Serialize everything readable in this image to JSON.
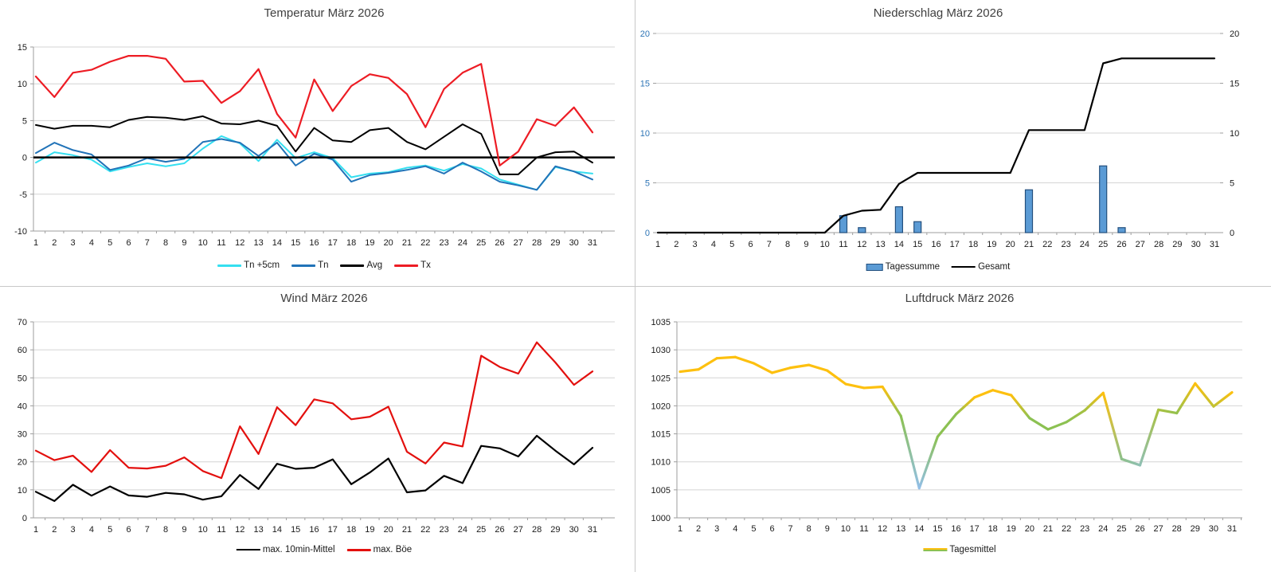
{
  "page": {
    "divider_color": "#c8c8c8",
    "background": "#ffffff"
  },
  "styles": {
    "grid_color": "#d4d4d4",
    "axis_color": "#9e9e9e",
    "tick_label_color": "#1a1a1a",
    "title_color": "#3f3f3f"
  },
  "days": [
    "1",
    "2",
    "3",
    "4",
    "5",
    "6",
    "7",
    "8",
    "9",
    "10",
    "11",
    "12",
    "13",
    "14",
    "15",
    "16",
    "17",
    "18",
    "19",
    "20",
    "21",
    "22",
    "23",
    "24",
    "25",
    "26",
    "27",
    "28",
    "29",
    "30",
    "31"
  ],
  "chart_data": [
    {
      "id": "temperature",
      "type": "line",
      "title": "Temperatur März 2026",
      "ylim": [
        -10,
        15
      ],
      "yticks": [
        15,
        10,
        5,
        0,
        -5,
        -10
      ],
      "grid": true,
      "baseline": {
        "value": 0,
        "color": "#000000",
        "width": 2.5,
        "insert_at": 2
      },
      "series": [
        {
          "name": "Tn +5cm",
          "color": "#35dff0",
          "width": 2,
          "values": [
            -0.7,
            0.7,
            0.3,
            -0.3,
            -1.9,
            -1.3,
            -0.8,
            -1.2,
            -0.8,
            1.2,
            2.9,
            1.9,
            -0.5,
            2.4,
            -0.1,
            0.7,
            -0.1,
            -2.7,
            -2.2,
            -2.0,
            -1.4,
            -1.1,
            -1.8,
            -0.9,
            -1.5,
            -3.0,
            -3.7,
            -4.4,
            -1.3,
            -1.9,
            -2.2
          ]
        },
        {
          "name": "Tn",
          "color": "#2173b8",
          "width": 2,
          "values": [
            0.6,
            2.0,
            1.0,
            0.4,
            -1.7,
            -1.1,
            -0.1,
            -0.6,
            -0.2,
            2.1,
            2.5,
            2.0,
            0.2,
            2.0,
            -1.1,
            0.5,
            -0.3,
            -3.3,
            -2.4,
            -2.1,
            -1.7,
            -1.2,
            -2.2,
            -0.7,
            -1.9,
            -3.3,
            -3.8,
            -4.4,
            -1.2,
            -1.9,
            -3.0
          ]
        },
        {
          "name": "Avg",
          "color": "#000000",
          "width": 2,
          "values": [
            4.4,
            3.9,
            4.3,
            4.3,
            4.1,
            5.1,
            5.5,
            5.4,
            5.1,
            5.6,
            4.6,
            4.5,
            5.0,
            4.3,
            0.8,
            4.0,
            2.3,
            2.1,
            3.7,
            4.0,
            2.1,
            1.1,
            2.8,
            4.5,
            3.2,
            -2.3,
            -2.3,
            0.0,
            0.7,
            0.8,
            -0.7
          ]
        },
        {
          "name": "Tx",
          "color": "#ed1c24",
          "width": 2.2,
          "values": [
            11.0,
            8.2,
            11.5,
            11.9,
            13.0,
            13.8,
            13.8,
            13.4,
            10.3,
            10.4,
            7.4,
            9.0,
            12.0,
            5.9,
            2.7,
            10.6,
            6.3,
            9.7,
            11.3,
            10.8,
            8.6,
            4.1,
            9.3,
            11.5,
            12.7,
            -1.1,
            0.8,
            5.2,
            4.3,
            6.8,
            3.4
          ]
        }
      ],
      "legend": [
        {
          "label": "Tn +5cm",
          "swatch": "line",
          "color": "#35dff0"
        },
        {
          "label": "Tn",
          "swatch": "line",
          "color": "#2173b8"
        },
        {
          "label": "Avg",
          "swatch": "line",
          "color": "#000000"
        },
        {
          "label": "Tx",
          "swatch": "line",
          "color": "#ed1c24"
        }
      ]
    },
    {
      "id": "precipitation",
      "type": "bar-line",
      "title": "Niederschlag März 2026",
      "ylim": [
        0,
        20
      ],
      "yticks": [
        20,
        15,
        10,
        5,
        0
      ],
      "grid": true,
      "ytick_color_left": "#2e75b6",
      "ytick_color_right": "#1a1a1a",
      "yticks_right": true,
      "series": [
        {
          "name": "Tagessumme",
          "render": "bars",
          "fill": "#5b9bd5",
          "stroke": "#24507e",
          "values": [
            0,
            0,
            0,
            0,
            0,
            0,
            0,
            0,
            0,
            0,
            1.7,
            0.5,
            0,
            2.6,
            1.1,
            0,
            0,
            0,
            0,
            0,
            4.3,
            0,
            0,
            0,
            6.7,
            0.5,
            0,
            0,
            0,
            0,
            0
          ]
        },
        {
          "name": "Gesamt",
          "render": "line",
          "color": "#000000",
          "width": 2.2,
          "values": [
            0,
            0,
            0,
            0,
            0,
            0,
            0,
            0,
            0,
            0,
            1.7,
            2.2,
            2.3,
            4.9,
            6.0,
            6.0,
            6.0,
            6.0,
            6.0,
            6.0,
            10.3,
            10.3,
            10.3,
            10.3,
            17.0,
            17.5,
            17.5,
            17.5,
            17.5,
            17.5,
            17.5
          ]
        }
      ],
      "legend": [
        {
          "label": "Tagessumme",
          "swatch": "bar",
          "color": "#5b9bd5",
          "border": "#24507e"
        },
        {
          "label": "Gesamt",
          "swatch": "thinline",
          "color": "#000000"
        }
      ]
    },
    {
      "id": "wind",
      "type": "line",
      "title": "Wind März 2026",
      "ylim": [
        0,
        70
      ],
      "yticks": [
        70,
        60,
        50,
        40,
        30,
        20,
        10,
        0
      ],
      "grid": true,
      "series": [
        {
          "name": "max. 10min-Mittel",
          "color": "#000000",
          "width": 2.2,
          "values": [
            9.3,
            6.0,
            11.8,
            7.9,
            11.2,
            8.0,
            7.5,
            8.9,
            8.4,
            6.5,
            7.7,
            15.3,
            10.3,
            19.3,
            17.5,
            17.9,
            20.9,
            12.0,
            16.2,
            21.2,
            9.1,
            9.8,
            15.0,
            12.4,
            25.7,
            24.8,
            21.9,
            29.3,
            24.0,
            19.1,
            25.0
          ]
        },
        {
          "name": "max. Böe",
          "color": "#e3100e",
          "width": 2.2,
          "values": [
            24.0,
            20.6,
            22.2,
            16.4,
            24.2,
            17.9,
            17.6,
            18.6,
            21.6,
            16.7,
            14.2,
            32.7,
            22.8,
            39.5,
            33.1,
            42.3,
            40.9,
            35.2,
            36.1,
            39.7,
            23.6,
            19.4,
            26.9,
            25.5,
            57.9,
            53.9,
            51.5,
            62.7,
            55.5,
            47.5,
            52.3
          ]
        }
      ],
      "legend": [
        {
          "label": "max. 10min-Mittel",
          "swatch": "thinline",
          "color": "#000000"
        },
        {
          "label": "max. Böe",
          "swatch": "line",
          "color": "#e3100e"
        }
      ]
    },
    {
      "id": "pressure",
      "type": "multicolor-line",
      "title": "Luftdruck März 2026",
      "ylim": [
        1000,
        1035
      ],
      "yticks": [
        1035,
        1030,
        1025,
        1020,
        1015,
        1010,
        1005,
        1000
      ],
      "grid": true,
      "series": [
        {
          "name": "Tagesmittel",
          "render": "multicolor",
          "width": 3.2,
          "color_stops": [
            [
              1008,
              "#92bfe8"
            ],
            [
              1012,
              "#8cc152"
            ],
            [
              1018.5,
              "#8cc152"
            ],
            [
              1021.5,
              "#fdc00f"
            ]
          ],
          "values": [
            1026.1,
            1026.5,
            1028.5,
            1028.7,
            1027.6,
            1025.9,
            1026.8,
            1027.3,
            1026.3,
            1023.9,
            1023.2,
            1023.4,
            1018.2,
            1005.3,
            1014.5,
            1018.5,
            1021.5,
            1022.8,
            1021.9,
            1017.8,
            1015.8,
            1017.1,
            1019.2,
            1022.3,
            1010.5,
            1009.4,
            1019.3,
            1018.7,
            1024.0,
            1019.9,
            1022.4
          ]
        }
      ],
      "legend": [
        {
          "label": "Tagesmittel",
          "swatch": "gradline",
          "color": "#fdc00f",
          "color2": "#8cc152"
        }
      ]
    }
  ]
}
